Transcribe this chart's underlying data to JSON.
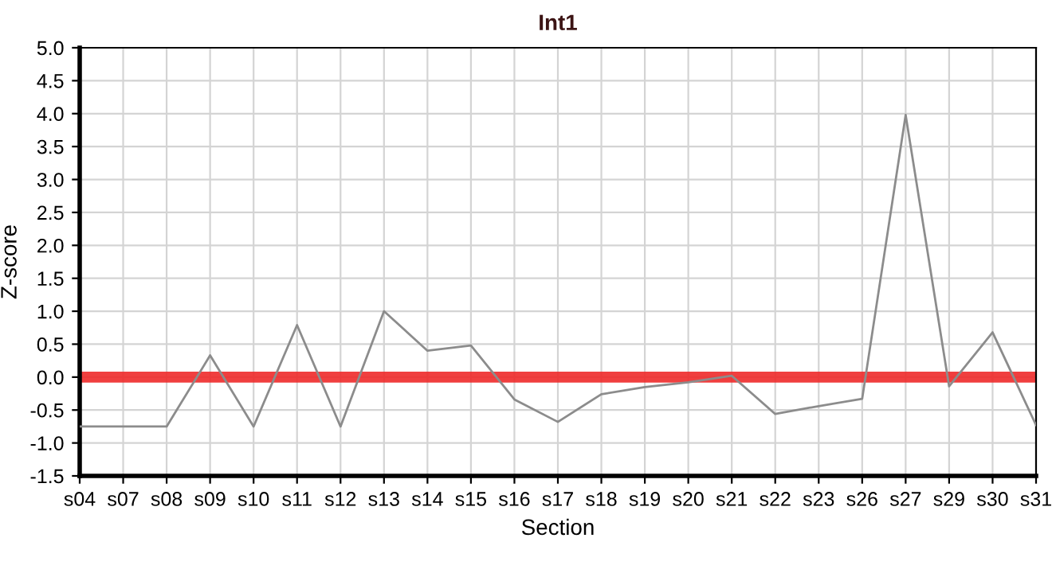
{
  "chart_data": {
    "type": "line",
    "title": "Int1",
    "xlabel": "Section",
    "ylabel": "Z-score",
    "categories": [
      "s04",
      "s07",
      "s08",
      "s09",
      "s10",
      "s11",
      "s12",
      "s13",
      "s14",
      "s15",
      "s16",
      "s17",
      "s18",
      "s19",
      "s20",
      "s21",
      "s22",
      "s23",
      "s26",
      "s27",
      "s29",
      "s30",
      "s31"
    ],
    "series": [
      {
        "color": "#8c8c8c",
        "values": [
          -0.75,
          -0.75,
          -0.75,
          0.33,
          -0.75,
          0.79,
          -0.75,
          1.0,
          0.4,
          0.48,
          -0.34,
          -0.68,
          -0.26,
          -0.15,
          -0.08,
          0.02,
          -0.56,
          -0.44,
          -0.33,
          3.98,
          -0.14,
          0.68,
          -0.73
        ]
      }
    ],
    "ylim": [
      -1.5,
      5.0
    ],
    "yticks": [
      {
        "value": -1.5,
        "label": "-1.5"
      },
      {
        "value": -1.0,
        "label": "-1.0"
      },
      {
        "value": -0.5,
        "label": "-0.5"
      },
      {
        "value": 0.0,
        "label": "0.0"
      },
      0.5,
      {
        "value": 1.0,
        "label": "1.0"
      },
      1.5,
      {
        "value": 2.0,
        "label": "2.0"
      },
      2.5,
      {
        "value": 3.0,
        "label": "3.0"
      },
      3.5,
      {
        "value": 4.0,
        "label": "4.0"
      },
      4.5,
      {
        "value": 5.0,
        "label": "5.0"
      }
    ],
    "ref_lines": [
      {
        "axis": "y",
        "value": 0,
        "label": null,
        "color": "#ee2a2a"
      }
    ],
    "grid": true,
    "legend": false,
    "marker": "none",
    "line_style": "solid"
  }
}
